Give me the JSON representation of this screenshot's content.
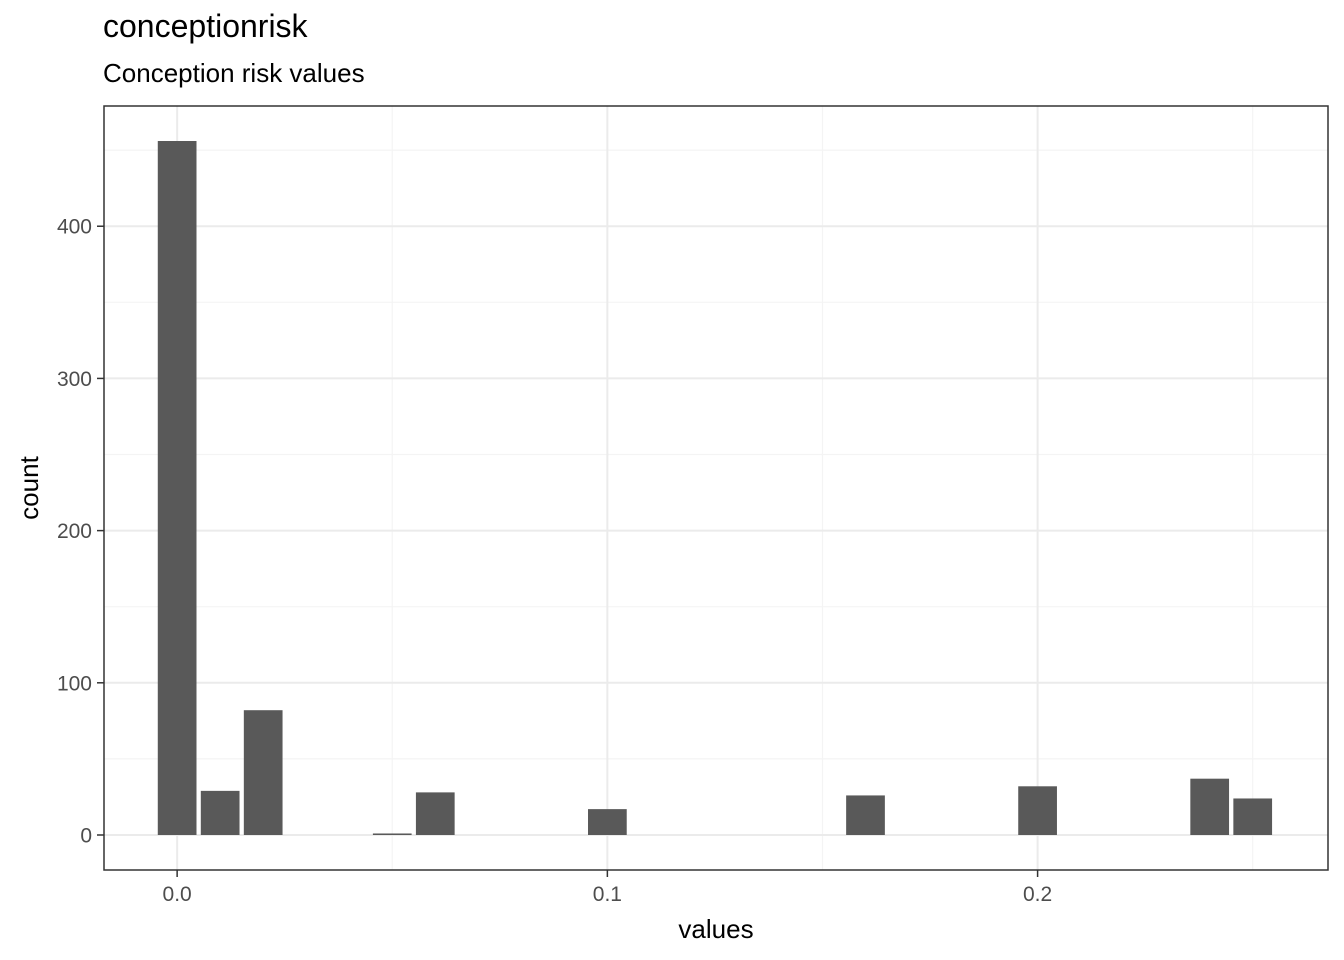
{
  "colors": {
    "bar": "#595959",
    "grid_major": "#ebebeb",
    "grid_minor": "#f4f4f4",
    "panel_border": "#333333",
    "tick_text": "#4d4d4d",
    "axis_title": "#000000"
  },
  "chart_data": {
    "type": "bar",
    "title": "conceptionrisk",
    "subtitle": "Conception risk values",
    "xlabel": "values",
    "ylabel": "count",
    "xlim": [
      -0.017,
      0.2675
    ],
    "ylim": [
      -23,
      479
    ],
    "xticks": [
      0.0,
      0.1,
      0.2
    ],
    "xtick_labels": [
      "0.0",
      "0.1",
      "0.2"
    ],
    "yticks": [
      0,
      100,
      200,
      300,
      400
    ],
    "ytick_labels": [
      "0",
      "100",
      "200",
      "300",
      "400"
    ],
    "bin_width": 0.009,
    "grid": true,
    "legend": "none",
    "bars": [
      {
        "x": 0.0,
        "count": 456
      },
      {
        "x": 0.01,
        "count": 29
      },
      {
        "x": 0.02,
        "count": 82
      },
      {
        "x": 0.05,
        "count": 1
      },
      {
        "x": 0.06,
        "count": 28
      },
      {
        "x": 0.1,
        "count": 17
      },
      {
        "x": 0.16,
        "count": 26
      },
      {
        "x": 0.2,
        "count": 32
      },
      {
        "x": 0.24,
        "count": 37
      },
      {
        "x": 0.25,
        "count": 24
      }
    ]
  }
}
